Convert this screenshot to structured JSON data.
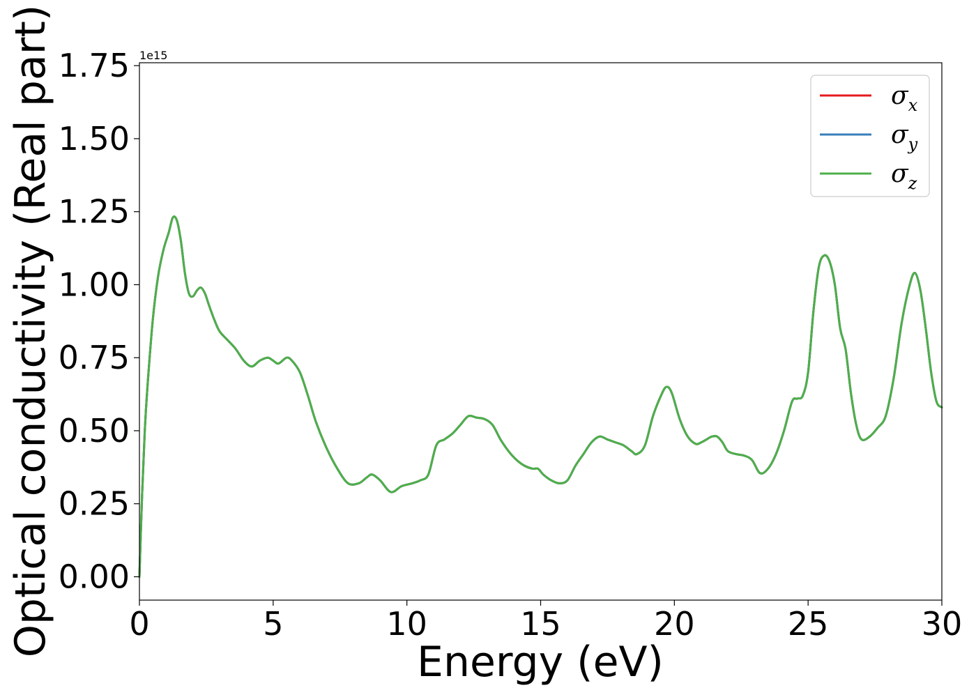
{
  "chart_data": {
    "type": "line",
    "xlabel": "Energy (eV)",
    "ylabel": "Optical conductivity (Real part)",
    "y_offset_label": "1e15",
    "y_scale": 1000000000000000.0,
    "xlim": [
      0,
      30
    ],
    "ylim": [
      -0.08,
      1.76
    ],
    "x_ticks": [
      0,
      5,
      10,
      15,
      20,
      25,
      30
    ],
    "x_tick_labels": [
      "0",
      "5",
      "10",
      "15",
      "20",
      "25",
      "30"
    ],
    "y_ticks": [
      0,
      0.25,
      0.5,
      0.75,
      1.0,
      1.25,
      1.5,
      1.75
    ],
    "y_tick_labels": [
      "0.00",
      "0.25",
      "0.50",
      "0.75",
      "1.00",
      "1.25",
      "1.50",
      "1.75"
    ],
    "grid": false,
    "legend_position": "top-right",
    "x": [
      0,
      0.1,
      0.2,
      0.3,
      0.5,
      0.7,
      0.9,
      1.1,
      1.25,
      1.4,
      1.55,
      1.7,
      1.85,
      2.0,
      2.15,
      2.3,
      2.45,
      2.6,
      2.8,
      3.0,
      3.3,
      3.6,
      3.9,
      4.2,
      4.5,
      4.8,
      5.0,
      5.2,
      5.5,
      5.7,
      6.0,
      6.3,
      6.6,
      7.0,
      7.4,
      7.8,
      8.2,
      8.5,
      8.7,
      9.0,
      9.4,
      9.8,
      10.2,
      10.5,
      10.8,
      11.1,
      11.4,
      11.7,
      12.0,
      12.3,
      12.6,
      12.9,
      13.2,
      13.5,
      13.8,
      14.1,
      14.4,
      14.7,
      14.9,
      15.1,
      15.4,
      15.7,
      16.0,
      16.3,
      16.6,
      16.9,
      17.2,
      17.5,
      17.8,
      18.1,
      18.4,
      18.6,
      18.9,
      19.2,
      19.5,
      19.7,
      19.9,
      20.2,
      20.5,
      20.8,
      21.0,
      21.2,
      21.4,
      21.6,
      21.8,
      22.0,
      22.3,
      22.6,
      22.9,
      23.2,
      23.5,
      23.8,
      24.1,
      24.4,
      24.6,
      24.8,
      25.0,
      25.2,
      25.4,
      25.6,
      25.8,
      26.0,
      26.2,
      26.4,
      26.6,
      26.8,
      27.0,
      27.3,
      27.6,
      27.9,
      28.2,
      28.5,
      28.8,
      29.0,
      29.2,
      29.4,
      29.6,
      29.8,
      30.0
    ],
    "series": [
      {
        "name": "σ_x",
        "color": "#e41a1c",
        "values": [
          0.0,
          0.28,
          0.5,
          0.65,
          0.88,
          1.03,
          1.12,
          1.18,
          1.23,
          1.22,
          1.15,
          1.04,
          0.97,
          0.96,
          0.98,
          0.99,
          0.97,
          0.93,
          0.88,
          0.84,
          0.81,
          0.78,
          0.74,
          0.72,
          0.74,
          0.75,
          0.74,
          0.73,
          0.75,
          0.74,
          0.7,
          0.62,
          0.53,
          0.44,
          0.37,
          0.32,
          0.32,
          0.34,
          0.35,
          0.33,
          0.29,
          0.31,
          0.32,
          0.33,
          0.35,
          0.45,
          0.47,
          0.49,
          0.52,
          0.55,
          0.545,
          0.54,
          0.52,
          0.47,
          0.43,
          0.4,
          0.38,
          0.37,
          0.37,
          0.35,
          0.33,
          0.32,
          0.33,
          0.38,
          0.42,
          0.46,
          0.48,
          0.47,
          0.46,
          0.45,
          0.43,
          0.42,
          0.45,
          0.55,
          0.62,
          0.65,
          0.63,
          0.54,
          0.48,
          0.455,
          0.46,
          0.47,
          0.48,
          0.48,
          0.46,
          0.43,
          0.42,
          0.415,
          0.4,
          0.355,
          0.37,
          0.42,
          0.5,
          0.6,
          0.61,
          0.62,
          0.7,
          0.91,
          1.06,
          1.1,
          1.08,
          1.0,
          0.85,
          0.78,
          0.63,
          0.52,
          0.47,
          0.48,
          0.51,
          0.55,
          0.68,
          0.87,
          1.0,
          1.04,
          0.98,
          0.85,
          0.7,
          0.6,
          0.58
        ]
      },
      {
        "name": "σ_y",
        "color": "#377eb8",
        "values": [
          0.0,
          0.28,
          0.5,
          0.65,
          0.88,
          1.03,
          1.12,
          1.18,
          1.23,
          1.22,
          1.15,
          1.04,
          0.97,
          0.96,
          0.98,
          0.99,
          0.97,
          0.93,
          0.88,
          0.84,
          0.81,
          0.78,
          0.74,
          0.72,
          0.74,
          0.75,
          0.74,
          0.73,
          0.75,
          0.74,
          0.7,
          0.62,
          0.53,
          0.44,
          0.37,
          0.32,
          0.32,
          0.34,
          0.35,
          0.33,
          0.29,
          0.31,
          0.32,
          0.33,
          0.35,
          0.45,
          0.47,
          0.49,
          0.52,
          0.55,
          0.545,
          0.54,
          0.52,
          0.47,
          0.43,
          0.4,
          0.38,
          0.37,
          0.37,
          0.35,
          0.33,
          0.32,
          0.33,
          0.38,
          0.42,
          0.46,
          0.48,
          0.47,
          0.46,
          0.45,
          0.43,
          0.42,
          0.45,
          0.55,
          0.62,
          0.65,
          0.63,
          0.54,
          0.48,
          0.455,
          0.46,
          0.47,
          0.48,
          0.48,
          0.46,
          0.43,
          0.42,
          0.415,
          0.4,
          0.355,
          0.37,
          0.42,
          0.5,
          0.6,
          0.61,
          0.62,
          0.7,
          0.91,
          1.06,
          1.1,
          1.08,
          1.0,
          0.85,
          0.78,
          0.63,
          0.52,
          0.47,
          0.48,
          0.51,
          0.55,
          0.68,
          0.87,
          1.0,
          1.04,
          0.98,
          0.85,
          0.7,
          0.6,
          0.58
        ]
      },
      {
        "name": "σ_z",
        "color": "#4daf4a",
        "values": [
          0.0,
          0.28,
          0.5,
          0.65,
          0.88,
          1.03,
          1.12,
          1.18,
          1.23,
          1.22,
          1.15,
          1.04,
          0.97,
          0.96,
          0.98,
          0.99,
          0.97,
          0.93,
          0.88,
          0.84,
          0.81,
          0.78,
          0.74,
          0.72,
          0.74,
          0.75,
          0.74,
          0.73,
          0.75,
          0.74,
          0.7,
          0.62,
          0.53,
          0.44,
          0.37,
          0.32,
          0.32,
          0.34,
          0.35,
          0.33,
          0.29,
          0.31,
          0.32,
          0.33,
          0.35,
          0.45,
          0.47,
          0.49,
          0.52,
          0.55,
          0.545,
          0.54,
          0.52,
          0.47,
          0.43,
          0.4,
          0.38,
          0.37,
          0.37,
          0.35,
          0.33,
          0.32,
          0.33,
          0.38,
          0.42,
          0.46,
          0.48,
          0.47,
          0.46,
          0.45,
          0.43,
          0.42,
          0.45,
          0.55,
          0.62,
          0.65,
          0.63,
          0.54,
          0.48,
          0.455,
          0.46,
          0.47,
          0.48,
          0.48,
          0.46,
          0.43,
          0.42,
          0.415,
          0.4,
          0.355,
          0.37,
          0.42,
          0.5,
          0.6,
          0.61,
          0.62,
          0.7,
          0.91,
          1.06,
          1.1,
          1.08,
          1.0,
          0.85,
          0.78,
          0.63,
          0.52,
          0.47,
          0.48,
          0.51,
          0.55,
          0.68,
          0.87,
          1.0,
          1.04,
          0.98,
          0.85,
          0.7,
          0.6,
          0.58
        ]
      }
    ],
    "legend": [
      {
        "symbol": "σ",
        "subscript": "x",
        "color": "#e41a1c"
      },
      {
        "symbol": "σ",
        "subscript": "y",
        "color": "#377eb8"
      },
      {
        "symbol": "σ",
        "subscript": "z",
        "color": "#4daf4a"
      }
    ]
  }
}
